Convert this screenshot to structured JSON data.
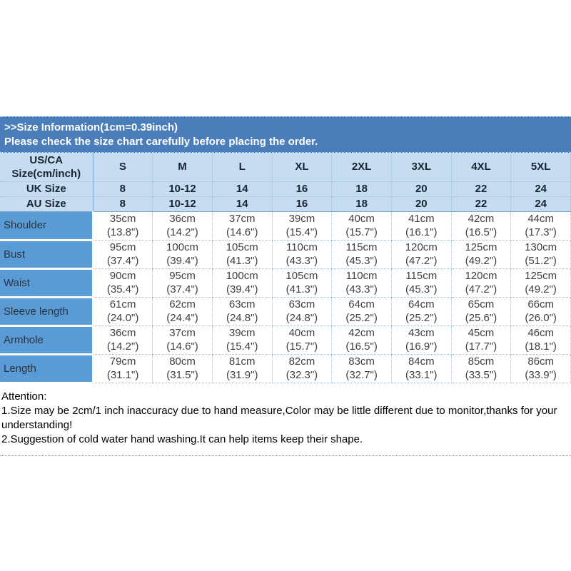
{
  "banner": {
    "line1": ">>Size Information(1cm=0.39inch)",
    "line2": "Please check the size chart carefully before placing the order."
  },
  "table": {
    "header": {
      "label_lines": [
        "US/CA",
        "Size(cm/inch)"
      ],
      "sizes": [
        "S",
        "M",
        "L",
        "XL",
        "2XL",
        "3XL",
        "4XL",
        "5XL"
      ]
    },
    "size_rows": [
      {
        "label": "UK Size",
        "values": [
          "8",
          "10-12",
          "14",
          "16",
          "18",
          "20",
          "22",
          "24"
        ]
      },
      {
        "label": "AU Size",
        "values": [
          "8",
          "10-12",
          "14",
          "16",
          "18",
          "20",
          "22",
          "24"
        ]
      }
    ],
    "measure_rows": [
      {
        "label": "Shoulder",
        "cm": [
          "35cm",
          "36cm",
          "37cm",
          "39cm",
          "40cm",
          "41cm",
          "42cm",
          "44cm"
        ],
        "inch": [
          "(13.8\")",
          "(14.2\")",
          "(14.6\")",
          "(15.4\")",
          "(15.7\")",
          "(16.1\")",
          "(16.5\")",
          "(17.3\")"
        ]
      },
      {
        "label": "Bust",
        "cm": [
          "95cm",
          "100cm",
          "105cm",
          "110cm",
          "115cm",
          "120cm",
          "125cm",
          "130cm"
        ],
        "inch": [
          "(37.4\")",
          "(39.4\")",
          "(41.3\")",
          "(43.3\")",
          "(45.3\")",
          "(47.2\")",
          "(49.2\")",
          "(51.2\")"
        ]
      },
      {
        "label": "Waist",
        "cm": [
          "90cm",
          "95cm",
          "100cm",
          "105cm",
          "110cm",
          "115cm",
          "120cm",
          "125cm"
        ],
        "inch": [
          "(35.4\")",
          "(37.4\")",
          "(39.4\")",
          "(41.3\")",
          "(43.3\")",
          "(45.3\")",
          "(47.2\")",
          "(49.2\")"
        ]
      },
      {
        "label": "Sleeve length",
        "cm": [
          "61cm",
          "62cm",
          "63cm",
          "63cm",
          "64cm",
          "64cm",
          "65cm",
          "66cm"
        ],
        "inch": [
          "(24.0\")",
          "(24.4\")",
          "(24.8\")",
          "(24.8\")",
          "(25.2\")",
          "(25.2\")",
          "(25.6\")",
          "(26.0\")"
        ]
      },
      {
        "label": "Armhole",
        "cm": [
          "36cm",
          "37cm",
          "39cm",
          "40cm",
          "42cm",
          "43cm",
          "45cm",
          "46cm"
        ],
        "inch": [
          "(14.2\")",
          "(14.6\")",
          "(15.4\")",
          "(15.7\")",
          "(16.5\")",
          "(16.9\")",
          "(17.7\")",
          "(18.1\")"
        ]
      },
      {
        "label": "Length",
        "cm": [
          "79cm",
          "80cm",
          "81cm",
          "82cm",
          "83cm",
          "84cm",
          "85cm",
          "86cm"
        ],
        "inch": [
          "(31.1\")",
          "(31.5\")",
          "(31.9\")",
          "(32.3\")",
          "(32.7\")",
          "(33.1\")",
          "(33.5\")",
          "(33.9\")"
        ]
      }
    ]
  },
  "attention": {
    "title": "Attention:",
    "note1": "1.Size may be 2cm/1 inch inaccuracy due to hand measure,Color may be little different due to monitor,thanks for your understanding!",
    "note2": "2.Suggestion of cold water hand washing.It can help items keep their shape."
  },
  "colors": {
    "banner_blue": "#4a7db9",
    "header_light_blue": "#c6dcf1",
    "label_blue": "#5b9bd5",
    "dotted_border": "#9fbcd8",
    "banner_text": "#ffffff",
    "header_text": "#1a2433",
    "data_text": "#3f3f3f"
  }
}
